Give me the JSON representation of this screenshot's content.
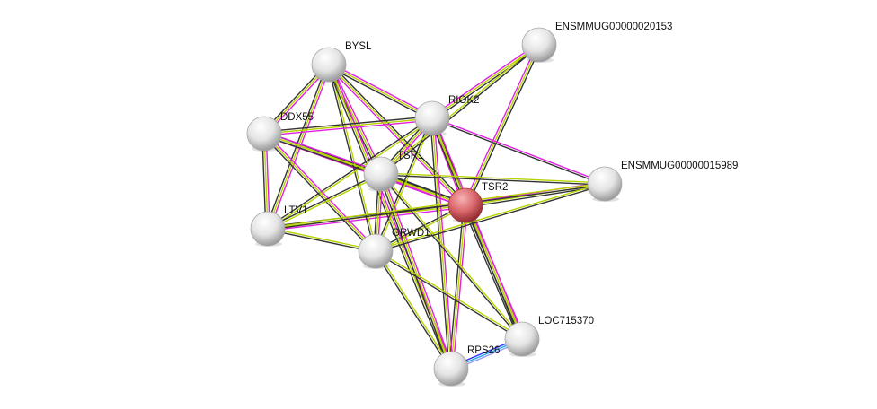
{
  "colors": {
    "query_node": "#d9676b",
    "node": "#e6e6e6",
    "channels": {
      "m": "#e020e0",
      "y": "#b8d400",
      "k": "#333333",
      "b": "#3030ff",
      "c": "#20a8e0",
      "p": "#9a9aff"
    }
  },
  "nodes": [
    {
      "id": "BYSL",
      "label": "BYSL",
      "query": false
    },
    {
      "id": "E20153",
      "label": "ENSMMUG00000020153",
      "query": false
    },
    {
      "id": "RIOK2",
      "label": "RIOK2",
      "query": false
    },
    {
      "id": "DDX55",
      "label": "DDX55",
      "query": false
    },
    {
      "id": "TSR1",
      "label": "TSR1",
      "query": false
    },
    {
      "id": "E15989",
      "label": "ENSMMUG00000015989",
      "query": false
    },
    {
      "id": "TSR2",
      "label": "TSR2",
      "query": true
    },
    {
      "id": "LTV1",
      "label": "LTV1",
      "query": false
    },
    {
      "id": "GRWD1",
      "label": "GRWD1",
      "query": false
    },
    {
      "id": "LOC715370",
      "label": "LOC715370",
      "query": false
    },
    {
      "id": "RPS26",
      "label": "RPS26",
      "query": false
    }
  ],
  "edges": [
    {
      "a": "TSR2",
      "b": "BYSL",
      "ch": "myk"
    },
    {
      "a": "TSR2",
      "b": "E20153",
      "ch": "myk"
    },
    {
      "a": "TSR2",
      "b": "RIOK2",
      "ch": "myk"
    },
    {
      "a": "TSR2",
      "b": "DDX55",
      "ch": "myk"
    },
    {
      "a": "TSR2",
      "b": "TSR1",
      "ch": "myk"
    },
    {
      "a": "TSR2",
      "b": "E15989",
      "ch": "myk"
    },
    {
      "a": "TSR2",
      "b": "LTV1",
      "ch": "myk"
    },
    {
      "a": "TSR2",
      "b": "GRWD1",
      "ch": "yk"
    },
    {
      "a": "TSR2",
      "b": "LOC715370",
      "ch": "mykk"
    },
    {
      "a": "TSR2",
      "b": "RPS26",
      "ch": "myk"
    },
    {
      "a": "BYSL",
      "b": "RIOK2",
      "ch": "myk"
    },
    {
      "a": "BYSL",
      "b": "DDX55",
      "ch": "myk"
    },
    {
      "a": "BYSL",
      "b": "TSR1",
      "ch": "myk"
    },
    {
      "a": "BYSL",
      "b": "LTV1",
      "ch": "myk"
    },
    {
      "a": "BYSL",
      "b": "GRWD1",
      "ch": "yk"
    },
    {
      "a": "BYSL",
      "b": "RPS26",
      "ch": "myk"
    },
    {
      "a": "RIOK2",
      "b": "E20153",
      "ch": "myk"
    },
    {
      "a": "RIOK2",
      "b": "DDX55",
      "ch": "myk"
    },
    {
      "a": "RIOK2",
      "b": "TSR1",
      "ch": "myk"
    },
    {
      "a": "RIOK2",
      "b": "LTV1",
      "ch": "yk"
    },
    {
      "a": "RIOK2",
      "b": "GRWD1",
      "ch": "yk"
    },
    {
      "a": "RIOK2",
      "b": "E15989",
      "ch": "mk"
    },
    {
      "a": "RIOK2",
      "b": "RPS26",
      "ch": "myk"
    },
    {
      "a": "RIOK2",
      "b": "LOC715370",
      "ch": "myk"
    },
    {
      "a": "DDX55",
      "b": "TSR1",
      "ch": "myk"
    },
    {
      "a": "DDX55",
      "b": "LTV1",
      "ch": "myk"
    },
    {
      "a": "DDX55",
      "b": "GRWD1",
      "ch": "myk"
    },
    {
      "a": "TSR1",
      "b": "E20153",
      "ch": "yk"
    },
    {
      "a": "TSR1",
      "b": "E15989",
      "ch": "yk"
    },
    {
      "a": "TSR1",
      "b": "LTV1",
      "ch": "yk"
    },
    {
      "a": "TSR1",
      "b": "GRWD1",
      "ch": "myk"
    },
    {
      "a": "TSR1",
      "b": "RPS26",
      "ch": "myk"
    },
    {
      "a": "TSR1",
      "b": "LOC715370",
      "ch": "yk"
    },
    {
      "a": "LTV1",
      "b": "GRWD1",
      "ch": "yk"
    },
    {
      "a": "LTV1",
      "b": "E15989",
      "ch": "yk"
    },
    {
      "a": "GRWD1",
      "b": "E15989",
      "ch": "yk"
    },
    {
      "a": "GRWD1",
      "b": "RPS26",
      "ch": "yk"
    },
    {
      "a": "GRWD1",
      "b": "LOC715370",
      "ch": "yk"
    },
    {
      "a": "RPS26",
      "b": "LOC715370",
      "ch": "bcp"
    }
  ]
}
